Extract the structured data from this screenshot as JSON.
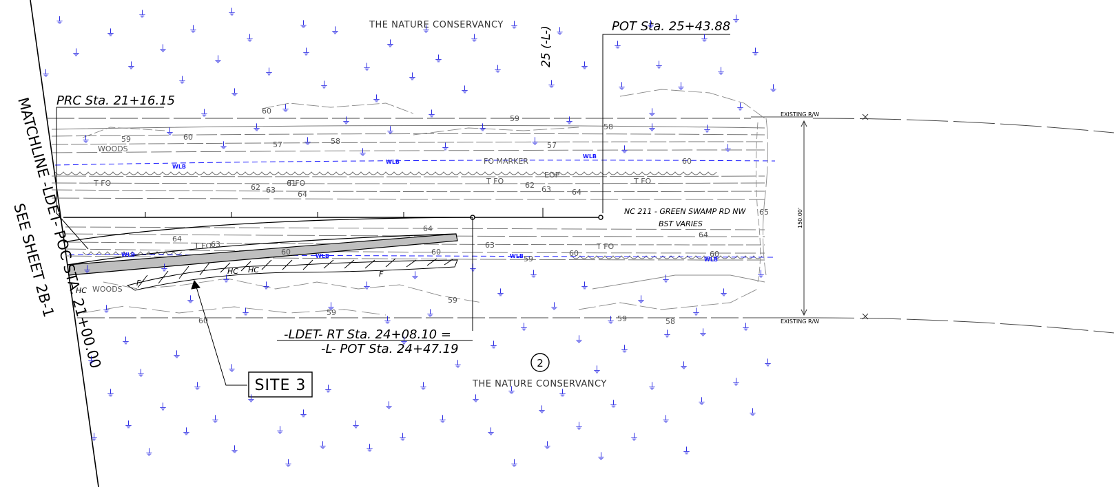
{
  "owners": {
    "top": "THE NATURE CONSERVANCY",
    "bottom": "THE NATURE CONSERVANCY"
  },
  "stations": {
    "pot_top": "POT  Sta. 25+43.88",
    "prc": "PRC  Sta. 21+16.15",
    "ldet_rt": "-LDET-  RT  Sta. 24+08.10  =",
    "l_pot": "-L-  POT  Sta. 24+47.19",
    "l_station": "25 (-L-)"
  },
  "matchline": {
    "line1": "MATCHLINE  -LDET-  POC  STA. 21+00.00",
    "line2": "SEE SHEET 2B-1"
  },
  "road": {
    "name": "NC 211 - GREEN SWAMP RD NW",
    "surface": "BST VARIES"
  },
  "right_of_way": {
    "top_label": "EXISTING R/W",
    "bottom_label": "EXISTING R/W",
    "width": "150.00'"
  },
  "site": {
    "label": "SITE 3",
    "parcel": "2"
  },
  "features": {
    "woods_upper": "WOODS",
    "woods_lower": "WOODS",
    "fo_marker": "FO MARKER",
    "fo": "T FO",
    "wlb": "WLB",
    "eop": "EOP",
    "fill": "F",
    "hc": "HC"
  },
  "contours": [
    "59",
    "60",
    "57",
    "58",
    "63",
    "64",
    "62",
    "61",
    "65"
  ],
  "colors": {
    "linework": "#000000",
    "contour": "#777777",
    "wetland": "#1a1aff",
    "hatch": "#999999"
  }
}
